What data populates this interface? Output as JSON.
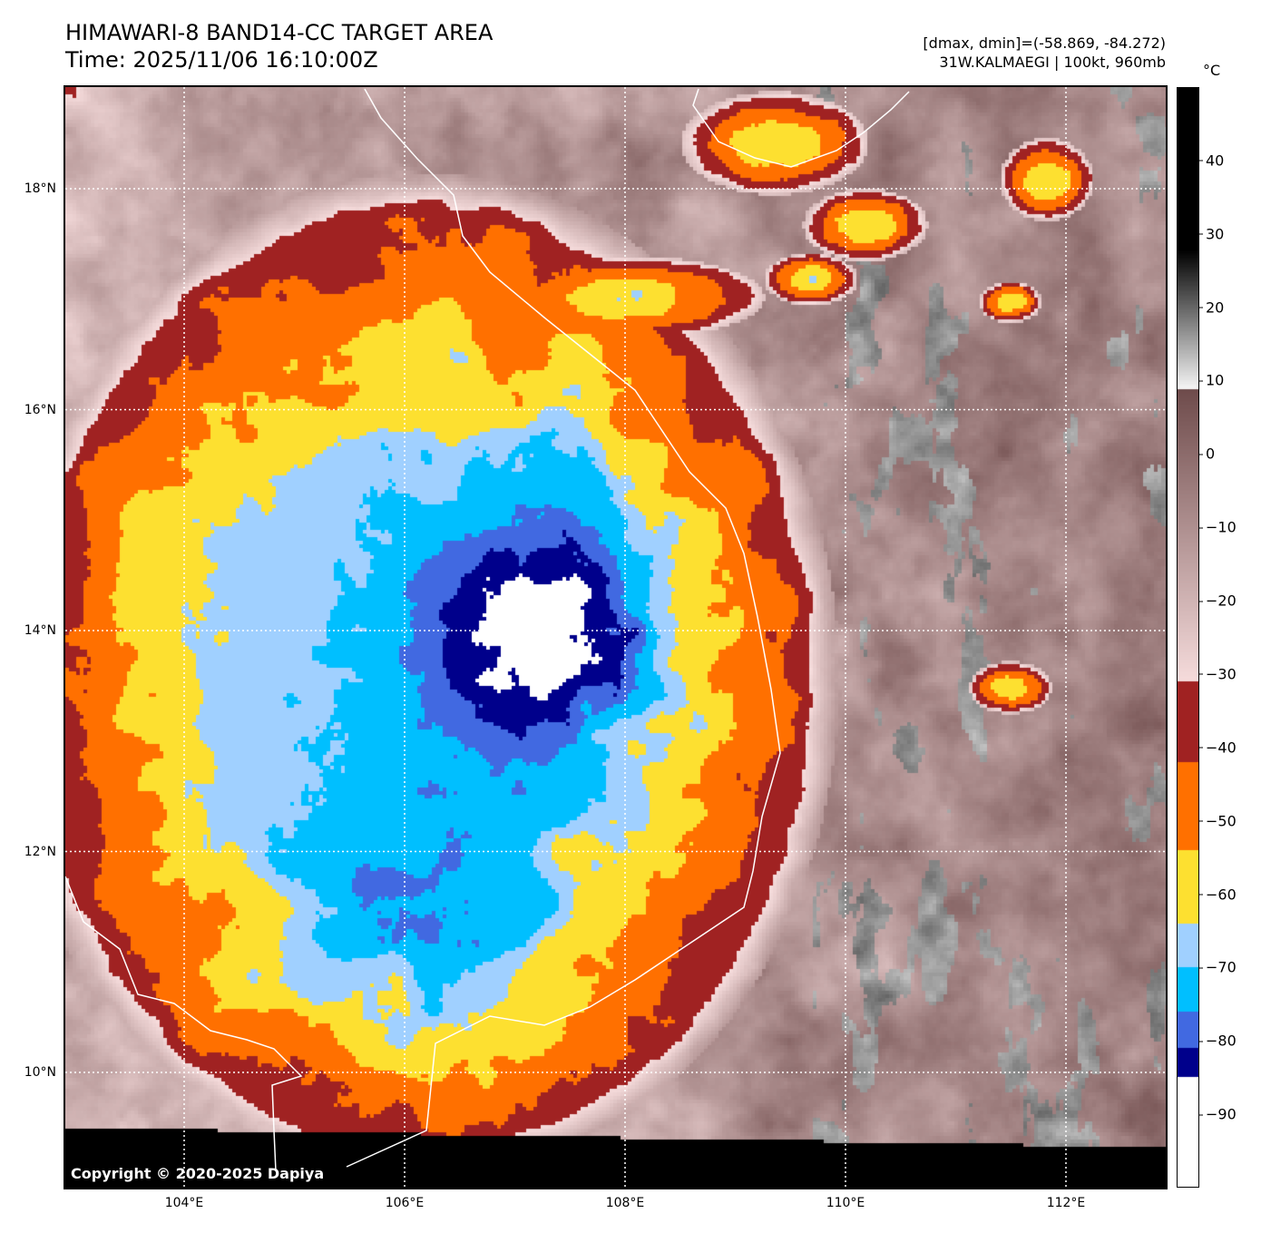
{
  "header": {
    "title": "HIMAWARI-8 BAND14-CC TARGET AREA",
    "time": "Time: 2025/11/06 16:10:00Z",
    "range": "[dmax, dmin]=(-58.869, -84.272)",
    "storm": "31W.KALMAEGI | 100kt, 960mb"
  },
  "colorbar": {
    "unit": "°C",
    "min": -100,
    "max": 50,
    "ticks": [
      {
        "v": 40,
        "label": "40"
      },
      {
        "v": 30,
        "label": "30"
      },
      {
        "v": 20,
        "label": "20"
      },
      {
        "v": 10,
        "label": "10"
      },
      {
        "v": 0,
        "label": "0"
      },
      {
        "v": -10,
        "label": "−10"
      },
      {
        "v": -20,
        "label": "−20"
      },
      {
        "v": -30,
        "label": "−30"
      },
      {
        "v": -40,
        "label": "−40"
      },
      {
        "v": -50,
        "label": "−50"
      },
      {
        "v": -60,
        "label": "−60"
      },
      {
        "v": -70,
        "label": "−70"
      },
      {
        "v": -80,
        "label": "−80"
      },
      {
        "v": -90,
        "label": "−90"
      }
    ],
    "bands": [
      {
        "below": -85,
        "color": "#ffffff"
      },
      {
        "below": -81,
        "color": "#00008b"
      },
      {
        "below": -76,
        "color": "#4169e1"
      },
      {
        "below": -70,
        "color": "#00bfff"
      },
      {
        "below": -64,
        "color": "#a0d0ff"
      },
      {
        "below": -54,
        "color": "#fde030"
      },
      {
        "below": -42,
        "color": "#ff7000"
      },
      {
        "below": -31,
        "color": "#a02222"
      }
    ],
    "warm_start": "#f6dcdc",
    "warm_end": "#6e4b4b",
    "gray_top": "#000000"
  },
  "axes": {
    "lon": [
      {
        "deg": 104,
        "label": "104°E"
      },
      {
        "deg": 106,
        "label": "106°E"
      },
      {
        "deg": 108,
        "label": "108°E"
      },
      {
        "deg": 110,
        "label": "110°E"
      },
      {
        "deg": 112,
        "label": "112°E"
      }
    ],
    "lat": [
      {
        "deg": 18,
        "label": "18°N"
      },
      {
        "deg": 16,
        "label": "16°N"
      },
      {
        "deg": 14,
        "label": "14°N"
      },
      {
        "deg": 12,
        "label": "12°N"
      },
      {
        "deg": 10,
        "label": "10°N"
      }
    ]
  },
  "copyright": "Copyright © 2020-2025 Dapiya"
}
